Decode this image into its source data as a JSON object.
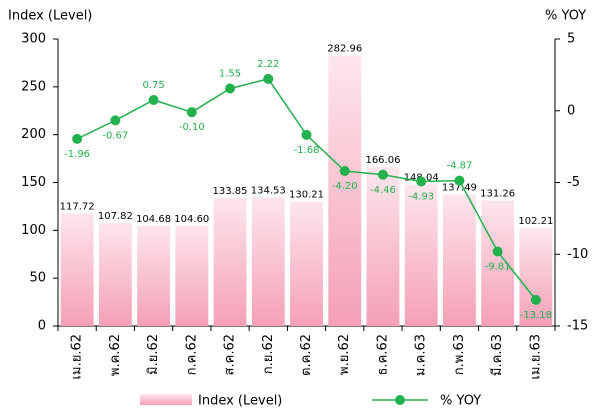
{
  "chart_data": {
    "type": "bar-line",
    "y_label": "Index (Level)",
    "y2_label": "% YOY",
    "categories": [
      "เม.ย.62",
      "พ.ค.62",
      "มิ.ย.62",
      "ก.ค.62",
      "ส.ค.62",
      "ก.ย.62",
      "ต.ค.62",
      "พ.ย.62",
      "ธ.ค.62",
      "ม.ค.63",
      "ก.พ.63",
      "มี.ค.63",
      "เม.ย.63"
    ],
    "series": [
      {
        "name": "Index (Level)",
        "type": "bar",
        "color": "#f4a0b6",
        "values": [
          117.72,
          107.82,
          104.68,
          104.6,
          133.85,
          134.53,
          130.21,
          282.96,
          166.06,
          148.04,
          137.49,
          131.26,
          102.21
        ],
        "value_labels": [
          "117.72",
          "107.82",
          "104.68",
          "104.60",
          "133.85",
          "134.53",
          "130.21",
          "282.96",
          "166.06",
          "148.04",
          "137.49",
          "131.26",
          "102.21"
        ]
      },
      {
        "name": "% YOY",
        "type": "line",
        "axis": "y2",
        "color": "#22b14c",
        "values": [
          -1.96,
          -0.67,
          0.75,
          -0.1,
          1.55,
          2.22,
          -1.68,
          -4.2,
          -4.46,
          -4.93,
          -4.87,
          -9.81,
          -13.18
        ],
        "value_labels": [
          "-1.96",
          "-0.67",
          "0.75",
          "-0.10",
          "1.55",
          "2.22",
          "-1.68",
          "-4.20",
          "-4.46",
          "-4.93",
          "-4.87",
          "-9.81",
          "-13.18"
        ]
      }
    ],
    "ylim": [
      0,
      300
    ],
    "yticks": [
      0,
      50,
      100,
      150,
      200,
      250,
      300
    ],
    "y2lim": [
      -15,
      5
    ],
    "y2ticks": [
      -15,
      -10,
      -5,
      0,
      5
    ]
  }
}
